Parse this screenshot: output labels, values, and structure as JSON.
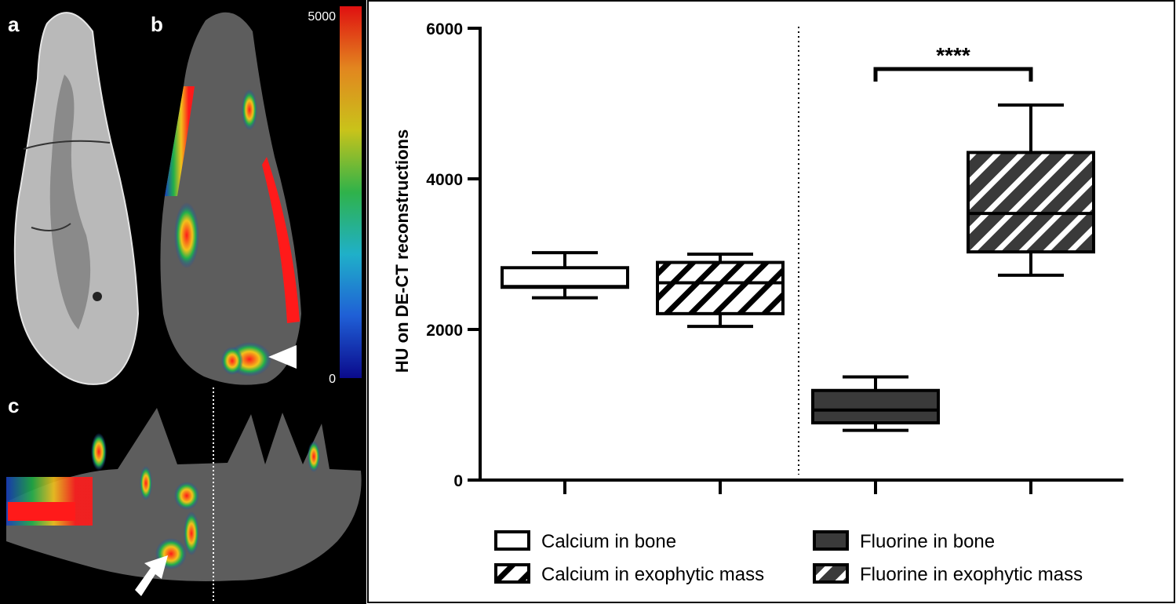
{
  "panels": {
    "a": "a",
    "b": "b",
    "c": "c"
  },
  "colorbar": {
    "max_label": "5000",
    "min_label": "0",
    "colors": [
      "#0a0a8c",
      "#1f5fd6",
      "#1fb0c9",
      "#2fb24a",
      "#c9c31a",
      "#e2861f",
      "#e01010"
    ]
  },
  "chart_data": {
    "type": "box",
    "ylabel": "HU on DE-CT reconstructions",
    "ylim": [
      0,
      6000
    ],
    "yticks": [
      0,
      2000,
      4000,
      6000
    ],
    "ytick_labels": [
      "0",
      "2000",
      "4000",
      "6000"
    ],
    "boxes": [
      {
        "name": "Calcium in bone",
        "fill": "#ffffff",
        "hatch": false,
        "min": 2420,
        "q1": 2560,
        "median": 2570,
        "q3": 2820,
        "max": 3020
      },
      {
        "name": "Calcium in exophytic mass",
        "fill": "#ffffff",
        "hatch": true,
        "min": 2040,
        "q1": 2210,
        "median": 2620,
        "q3": 2890,
        "max": 3000
      },
      {
        "name": "Fluorine in bone",
        "fill": "#3a3a3a",
        "hatch": false,
        "min": 660,
        "q1": 760,
        "median": 930,
        "q3": 1190,
        "max": 1370
      },
      {
        "name": "Fluorine in exophytic mass",
        "fill": "#3a3a3a",
        "hatch": true,
        "min": 2720,
        "q1": 3030,
        "median": 3540,
        "q3": 4350,
        "max": 4980
      }
    ],
    "significance": {
      "between": [
        2,
        3
      ],
      "label": "****"
    },
    "divider_after_box": 1,
    "legend": {
      "placement": "bottom",
      "entries": [
        "Calcium in bone",
        "Calcium in exophytic mass",
        "Fluorine in bone",
        "Fluorine in exophytic mass"
      ]
    }
  }
}
